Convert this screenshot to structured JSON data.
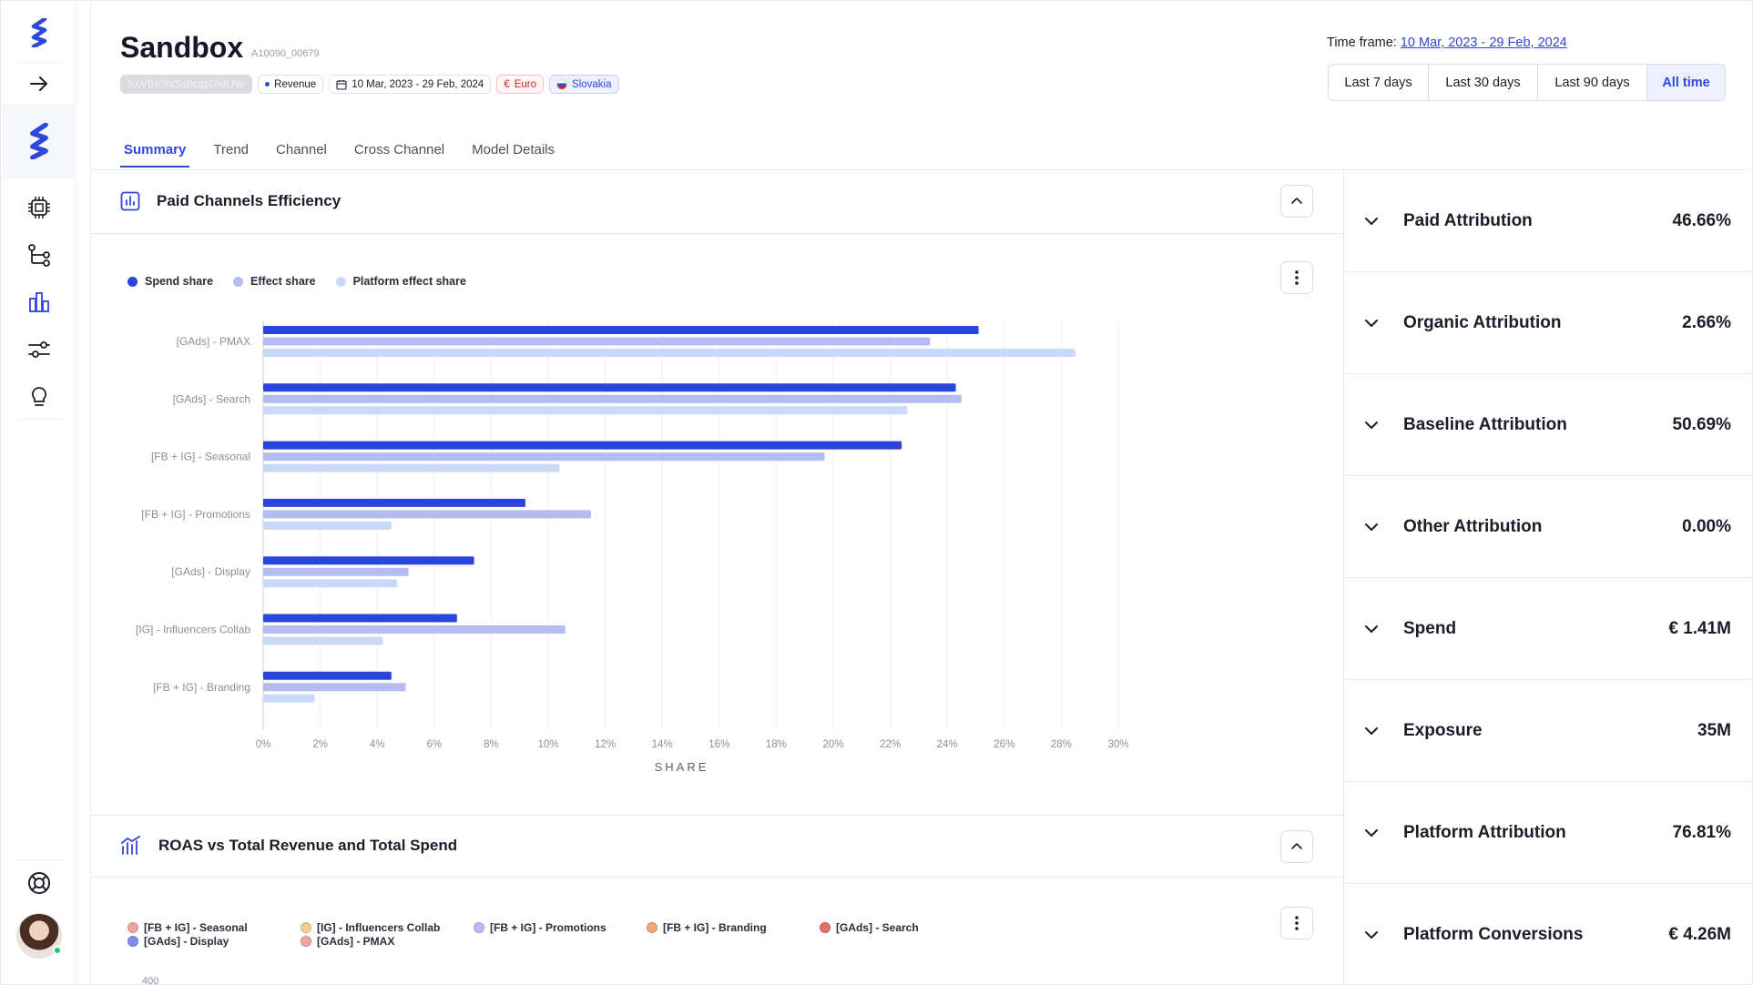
{
  "app": {
    "title": "Sandbox",
    "subtitle_id": "A10090_00679"
  },
  "chips": {
    "hash": "9XVBe3htSs0cqzGfdLNe",
    "revenue": "Revenue",
    "date_range": "10 Mar, 2023 - 29 Feb, 2024",
    "currency": "Euro",
    "country": "Slovakia"
  },
  "timeframe": {
    "label": "Time frame:",
    "value": "10 Mar, 2023 - 29 Feb, 2024",
    "options": [
      "Last 7 days",
      "Last 30 days",
      "Last 90 days",
      "All time"
    ],
    "selected": "All time"
  },
  "tabs": [
    "Summary",
    "Trend",
    "Channel",
    "Cross Channel",
    "Model Details"
  ],
  "panels": {
    "efficiency_title": "Paid Channels Efficiency",
    "roas_title": "ROAS vs Total Revenue and Total Spend"
  },
  "colors": {
    "accent": "#2f47d8",
    "spend": "#2a45dc",
    "effect": "#b4bcf2",
    "platform_effect": "#c9daf8"
  },
  "chart_data": [
    {
      "type": "bar",
      "orientation": "horizontal",
      "categories": [
        "[GAds] - PMAX",
        "[GAds] - Search",
        "[FB + IG] - Seasonal",
        "[FB + IG] - Promotions",
        "[GAds] - Display",
        "[IG] - Influencers Collab",
        "[FB + IG] - Branding"
      ],
      "series": [
        {
          "name": "Spend share",
          "values": [
            25.1,
            24.3,
            22.4,
            9.2,
            7.4,
            6.8,
            4.5
          ]
        },
        {
          "name": "Effect share",
          "values": [
            23.4,
            24.5,
            19.7,
            11.5,
            5.1,
            10.6,
            5.0
          ]
        },
        {
          "name": "Platform effect share",
          "values": [
            28.5,
            22.6,
            10.4,
            4.5,
            4.7,
            4.2,
            1.8
          ]
        }
      ],
      "xlabel": "SHARE",
      "xlim": [
        0,
        30
      ],
      "xticks": [
        "0%",
        "2%",
        "4%",
        "6%",
        "8%",
        "10%",
        "12%",
        "14%",
        "16%",
        "18%",
        "20%",
        "22%",
        "24%",
        "26%",
        "28%",
        "30%"
      ],
      "grid": true,
      "legend_position": "top-left"
    },
    {
      "type": "line",
      "series": [
        {
          "name": "[FB + IG] - Seasonal",
          "color": "#f0a3a3"
        },
        {
          "name": "[GAds] - Display",
          "color": "#7e8ff0"
        },
        {
          "name": "[IG] - Influencers Collab",
          "color": "#f6cf94"
        },
        {
          "name": "[GAds] - PMAX",
          "color": "#f0a3a3"
        },
        {
          "name": "[FB + IG] - Promotions",
          "color": "#b4bcf2"
        },
        {
          "name": "[FB + IG] - Branding",
          "color": "#f2a67a"
        },
        {
          "name": "[GAds] - Search",
          "color": "#e36f6f"
        }
      ],
      "yticks": [
        "400"
      ]
    }
  ],
  "metrics": [
    {
      "label": "Paid Attribution",
      "value": "46.66%"
    },
    {
      "label": "Organic Attribution",
      "value": "2.66%"
    },
    {
      "label": "Baseline Attribution",
      "value": "50.69%"
    },
    {
      "label": "Other Attribution",
      "value": "0.00%"
    },
    {
      "label": "Spend",
      "value": "€ 1.41M"
    },
    {
      "label": "Exposure",
      "value": "35M"
    },
    {
      "label": "Platform Attribution",
      "value": "76.81%"
    },
    {
      "label": "Platform Conversions",
      "value": "€ 4.26M"
    }
  ]
}
